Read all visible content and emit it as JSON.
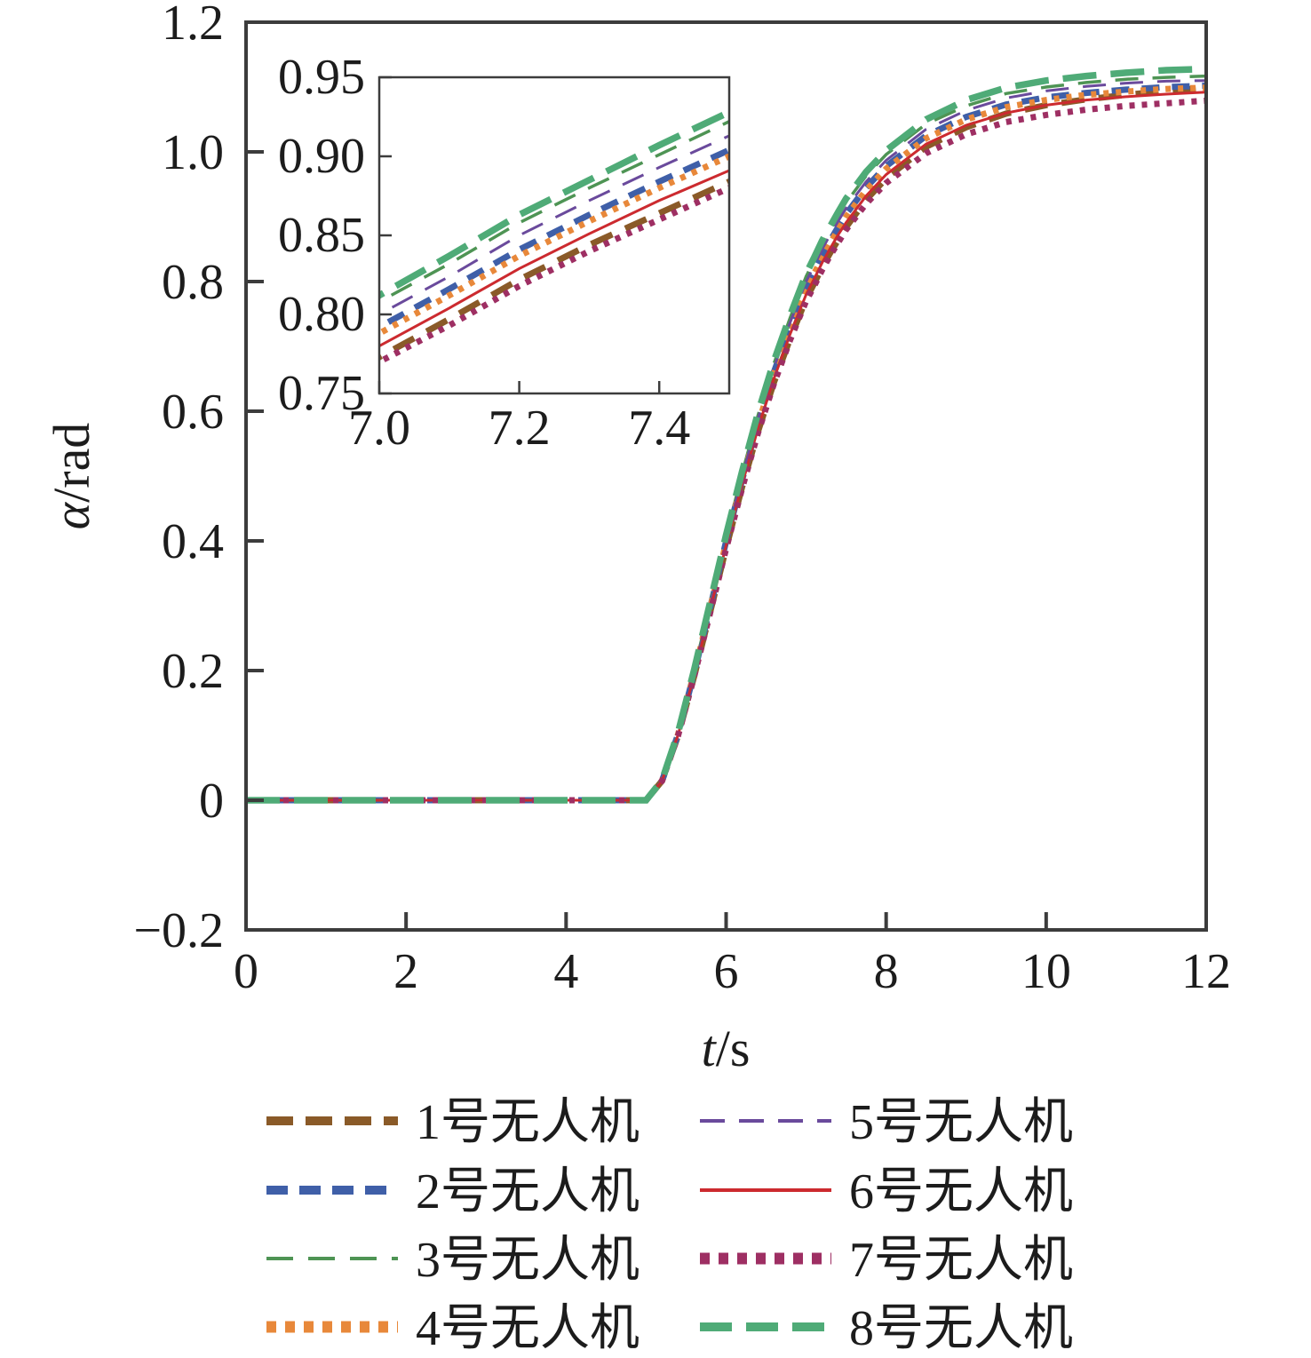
{
  "figure": {
    "xlabel_italic": "t",
    "xlabel_rest": "/s",
    "ylabel_italic": "α",
    "ylabel_rest": "/rad"
  },
  "chart_data": {
    "type": "line",
    "title": "",
    "xlabel": "t/s",
    "ylabel": "α/rad",
    "xlim": [
      0,
      12
    ],
    "ylim": [
      -0.2,
      1.2
    ],
    "xticks": [
      0,
      2,
      4,
      6,
      8,
      10,
      12
    ],
    "xtick_labels": [
      "0",
      "2",
      "4",
      "6",
      "8",
      "10",
      "12"
    ],
    "yticks": [
      -0.2,
      0,
      0.2,
      0.4,
      0.6,
      0.8,
      1.0,
      1.2
    ],
    "ytick_labels": [
      "−0.2",
      "0",
      "0.2",
      "0.4",
      "0.6",
      "0.8",
      "1.0",
      "1.2"
    ],
    "grid": false,
    "legend_position": "below-two-columns",
    "x": [
      0,
      1,
      2,
      3,
      4,
      4.8,
      5,
      5.2,
      5.4,
      5.6,
      5.8,
      6,
      6.2,
      6.4,
      6.6,
      6.8,
      7,
      7.1,
      7.2,
      7.3,
      7.4,
      7.5,
      7.75,
      8,
      8.5,
      9,
      9.5,
      10,
      10.5,
      11,
      11.5,
      12
    ],
    "series": [
      {
        "name": "1号无人机",
        "color": "#8a5a28",
        "pattern": "dashed-thick",
        "line": {
          "width": 7,
          "dash": "26 16"
        },
        "legend": {
          "width": 10,
          "dash": "30 14"
        },
        "values": [
          0,
          0,
          0,
          0,
          0,
          0,
          0,
          0.03,
          0.1,
          0.191,
          0.29,
          0.389,
          0.483,
          0.569,
          0.645,
          0.712,
          0.773,
          0.797,
          0.822,
          0.844,
          0.864,
          0.884,
          0.926,
          0.959,
          1.008,
          1.038,
          1.059,
          1.072,
          1.081,
          1.088,
          1.094,
          1.099
        ]
      },
      {
        "name": "2号无人机",
        "color": "#3f5fa8",
        "pattern": "dashed-thick",
        "line": {
          "width": 7,
          "dash": "20 14"
        },
        "legend": {
          "width": 10,
          "dash": "24 13"
        },
        "values": [
          0,
          0,
          0,
          0,
          0,
          0,
          0,
          0.03,
          0.102,
          0.196,
          0.297,
          0.399,
          0.494,
          0.583,
          0.661,
          0.73,
          0.792,
          0.816,
          0.841,
          0.863,
          0.884,
          0.904,
          0.945,
          0.978,
          1.025,
          1.054,
          1.073,
          1.084,
          1.091,
          1.096,
          1.1,
          1.102
        ]
      },
      {
        "name": "3号无人机",
        "color": "#4e9454",
        "pattern": "dashed-thin",
        "line": {
          "width": 3.5,
          "dash": "26 16"
        },
        "legend": {
          "width": 4,
          "dash": "30 17"
        },
        "values": [
          0,
          0,
          0,
          0,
          0,
          0,
          0,
          0.031,
          0.104,
          0.2,
          0.303,
          0.407,
          0.504,
          0.594,
          0.674,
          0.744,
          0.808,
          0.832,
          0.858,
          0.88,
          0.901,
          0.922,
          0.963,
          0.996,
          1.043,
          1.071,
          1.09,
          1.1,
          1.107,
          1.112,
          1.115,
          1.117
        ]
      },
      {
        "name": "4号无人机",
        "color": "#e8883a",
        "pattern": "dotted-thick",
        "line": {
          "width": 7,
          "dash": "6 8"
        },
        "legend": {
          "width": 13,
          "dash": "11 10"
        },
        "values": [
          0,
          0,
          0,
          0,
          0,
          0,
          0,
          0.03,
          0.102,
          0.195,
          0.296,
          0.397,
          0.492,
          0.58,
          0.658,
          0.726,
          0.788,
          0.812,
          0.837,
          0.859,
          0.88,
          0.9,
          0.941,
          0.974,
          1.021,
          1.05,
          1.069,
          1.08,
          1.088,
          1.093,
          1.097,
          1.099
        ]
      },
      {
        "name": "5号无人机",
        "color": "#6a4a9c",
        "pattern": "dashed-thin",
        "line": {
          "width": 3,
          "dash": "26 16"
        },
        "legend": {
          "width": 4,
          "dash": "28 16"
        },
        "values": [
          0,
          0,
          0,
          0,
          0,
          0,
          0,
          0.031,
          0.103,
          0.198,
          0.3,
          0.403,
          0.499,
          0.589,
          0.668,
          0.737,
          0.8,
          0.824,
          0.85,
          0.872,
          0.893,
          0.913,
          0.954,
          0.987,
          1.035,
          1.064,
          1.083,
          1.094,
          1.101,
          1.106,
          1.109,
          1.11
        ]
      },
      {
        "name": "6号无人机",
        "color": "#cc2a2f",
        "pattern": "solid-thin",
        "line": {
          "width": 3,
          "dash": ""
        },
        "legend": {
          "width": 4,
          "dash": ""
        },
        "values": [
          0,
          0,
          0,
          0,
          0,
          0,
          0,
          0.03,
          0.101,
          0.193,
          0.293,
          0.393,
          0.487,
          0.574,
          0.651,
          0.719,
          0.78,
          0.804,
          0.829,
          0.851,
          0.872,
          0.891,
          0.932,
          0.965,
          1.012,
          1.041,
          1.06,
          1.072,
          1.08,
          1.085,
          1.089,
          1.092
        ]
      },
      {
        "name": "7号无人机",
        "color": "#9e2f63",
        "pattern": "dotted-thick",
        "line": {
          "width": 7,
          "dash": "6 8"
        },
        "legend": {
          "width": 13,
          "dash": "11 10"
        },
        "values": [
          0,
          0,
          0,
          0,
          0,
          0,
          0,
          0.03,
          0.1,
          0.191,
          0.289,
          0.388,
          0.481,
          0.567,
          0.643,
          0.71,
          0.77,
          0.793,
          0.818,
          0.84,
          0.86,
          0.88,
          0.92,
          0.952,
          0.998,
          1.027,
          1.046,
          1.057,
          1.065,
          1.071,
          1.075,
          1.079
        ]
      },
      {
        "name": "8号无人机",
        "color": "#4fab77",
        "pattern": "dashed-thick",
        "line": {
          "width": 7.5,
          "dash": "38 16"
        },
        "legend": {
          "width": 10,
          "dash": "36 16"
        },
        "values": [
          0,
          0,
          0,
          0,
          0,
          0,
          0,
          0.031,
          0.105,
          0.201,
          0.305,
          0.409,
          0.507,
          0.598,
          0.678,
          0.748,
          0.812,
          0.837,
          0.863,
          0.885,
          0.907,
          0.928,
          0.969,
          1.002,
          1.05,
          1.08,
          1.099,
          1.11,
          1.117,
          1.122,
          1.126,
          1.128
        ]
      }
    ],
    "inset": {
      "xlim": [
        7.0,
        7.5
      ],
      "ylim": [
        0.75,
        0.95
      ],
      "xticks": [
        7.0,
        7.2,
        7.4
      ],
      "xtick_labels": [
        "7.0",
        "7.2",
        "7.4"
      ],
      "yticks": [
        0.75,
        0.8,
        0.85,
        0.9,
        0.95
      ],
      "ytick_labels": [
        "0.75",
        "0.80",
        "0.85",
        "0.90",
        "0.95"
      ]
    }
  },
  "legend": {
    "items": [
      "1号无人机",
      "2号无人机",
      "3号无人机",
      "4号无人机",
      "5号无人机",
      "6号无人机",
      "7号无人机",
      "8号无人机"
    ]
  }
}
